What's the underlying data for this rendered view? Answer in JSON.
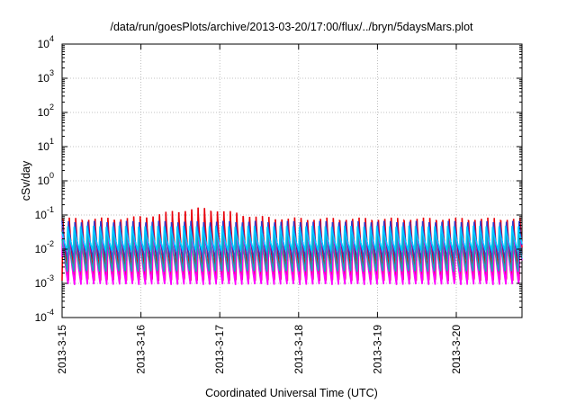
{
  "chart_data": {
    "type": "line",
    "title": "/data/run/goesPlots/archive/2013-03-20/17:00/flux/../bryn/5daysMars.plot",
    "xlabel": "Coordinated Universal Time (UTC)",
    "ylabel": "cSv/day",
    "scale": "log",
    "grid": true,
    "legend": "none",
    "xlim": [
      "2013-03-15 00:00",
      "2013-03-20 20:00"
    ],
    "ylim": [
      0.0001,
      10000
    ],
    "x_ticks": [
      "2013-3-15",
      "2013-3-16",
      "2013-3-17",
      "2013-3-18",
      "2013-3-19",
      "2013-3-20"
    ],
    "y_ticks": [
      {
        "value": 0.0001,
        "base": "10",
        "exp": "-4"
      },
      {
        "value": 0.001,
        "base": "10",
        "exp": "-3"
      },
      {
        "value": 0.01,
        "base": "10",
        "exp": "-2"
      },
      {
        "value": 0.1,
        "base": "10",
        "exp": "-1"
      },
      {
        "value": 1,
        "base": "10",
        "exp": "0"
      },
      {
        "value": 10,
        "base": "10",
        "exp": "1"
      },
      {
        "value": 100,
        "base": "10",
        "exp": "2"
      },
      {
        "value": 1000,
        "base": "10",
        "exp": "3"
      },
      {
        "value": 10000,
        "base": "10",
        "exp": "4"
      }
    ],
    "orbit_period_hours": 1.96,
    "series": [
      {
        "color": "#e8000b",
        "peak": 0.09,
        "trough": 0.0012,
        "peak_mid_span": 0.18
      },
      {
        "color": "#ff00ff",
        "peak": 0.035,
        "trough": 0.0009
      },
      {
        "color": "#2f3ad0",
        "peak": 0.07,
        "trough": 0.0045
      },
      {
        "color": "#1f9fb4",
        "peak": 0.03,
        "trough": 0.0022
      },
      {
        "color": "#00c8ff",
        "peak": 0.05,
        "trough": 0.009
      }
    ]
  }
}
